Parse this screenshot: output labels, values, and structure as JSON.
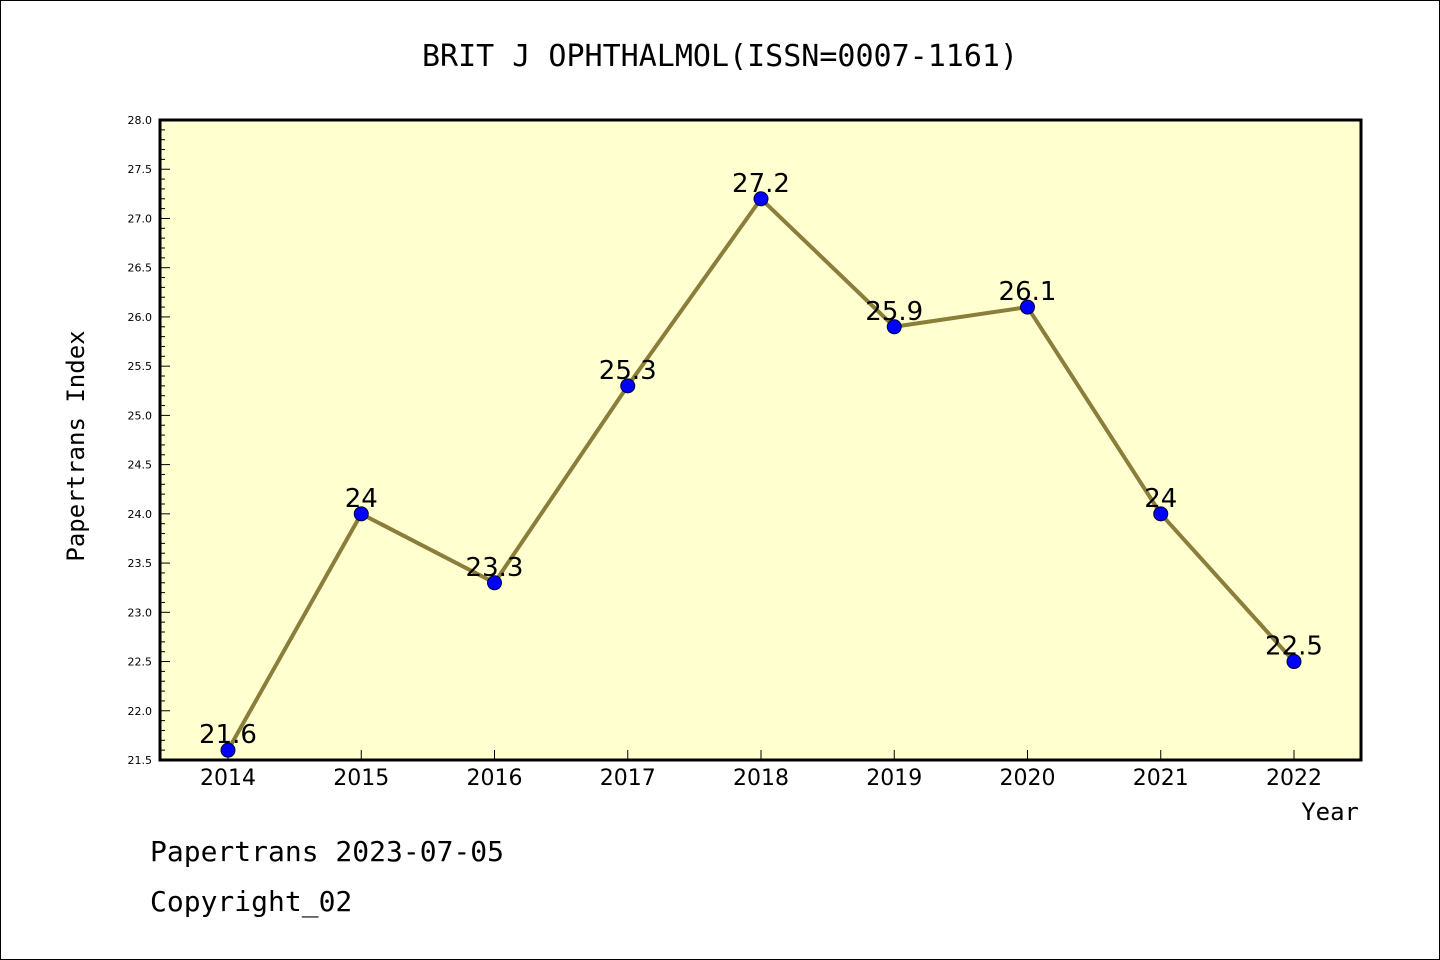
{
  "chart_data": {
    "type": "line",
    "title": "BRIT J OPHTHALMOL(ISSN=0007-1161)",
    "xlabel": "Year",
    "ylabel": "Papertrans Index",
    "ylim": [
      21.5,
      28.0
    ],
    "ytick_step": 0.5,
    "categories": [
      "2014",
      "2015",
      "2016",
      "2017",
      "2018",
      "2019",
      "2020",
      "2021",
      "2022"
    ],
    "series": [
      {
        "values": [
          21.6,
          24,
          23.3,
          25.3,
          27.2,
          25.9,
          26.1,
          24,
          22.5
        ],
        "labels": [
          "21.6",
          "24",
          "23.3",
          "25.3",
          "27.2",
          "25.9",
          "26.1",
          "24",
          "22.5"
        ],
        "line_color": "#8b7d3a",
        "marker_color": "#0000ff"
      }
    ],
    "plot_background": "#ffffd0",
    "grid": false,
    "legend": "none"
  },
  "footer": {
    "line1": "Papertrans 2023-07-05",
    "line2": "Copyright_02"
  }
}
